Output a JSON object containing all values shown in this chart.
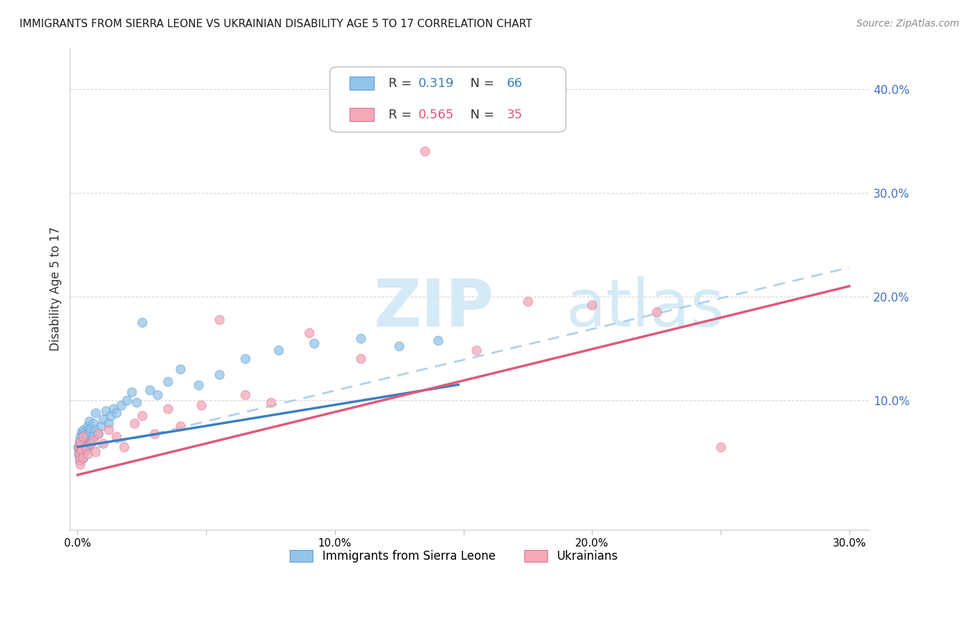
{
  "title": "IMMIGRANTS FROM SIERRA LEONE VS UKRAINIAN DISABILITY AGE 5 TO 17 CORRELATION CHART",
  "source": "Source: ZipAtlas.com",
  "ylabel": "Disability Age 5 to 17",
  "xlim": [
    -0.003,
    0.308
  ],
  "ylim": [
    -0.025,
    0.44
  ],
  "yticks_right": [
    0.1,
    0.2,
    0.3,
    0.4
  ],
  "xtick_vals": [
    0.0,
    0.05,
    0.1,
    0.15,
    0.2,
    0.25,
    0.3
  ],
  "blue_scatter_color": "#94c4e8",
  "blue_edge_color": "#5a9fd4",
  "pink_scatter_color": "#f4a8b8",
  "pink_edge_color": "#e07090",
  "blue_line_color": "#3a7fc1",
  "pink_line_color": "#e05878",
  "dash_line_color": "#a8cce8",
  "watermark_color": "#d0e8f5",
  "title_color": "#1a1a1a",
  "source_color": "#888888",
  "ylabel_color": "#333333",
  "right_tick_color": "#4472c4",
  "grid_color": "#d8d8d8",
  "legend_R1_color": "#333333",
  "legend_V1_color": "#3a7fc1",
  "legend_R2_color": "#333333",
  "legend_V2_color": "#e05878",
  "sl_x": [
    0.0002,
    0.0003,
    0.0005,
    0.0007,
    0.0008,
    0.001,
    0.001,
    0.001,
    0.001,
    0.0012,
    0.0013,
    0.0014,
    0.0015,
    0.0015,
    0.0016,
    0.0018,
    0.002,
    0.002,
    0.002,
    0.002,
    0.0022,
    0.0023,
    0.0025,
    0.0027,
    0.003,
    0.003,
    0.003,
    0.0032,
    0.0035,
    0.004,
    0.004,
    0.004,
    0.0042,
    0.0045,
    0.005,
    0.005,
    0.005,
    0.006,
    0.006,
    0.007,
    0.007,
    0.008,
    0.009,
    0.01,
    0.011,
    0.012,
    0.013,
    0.014,
    0.015,
    0.017,
    0.019,
    0.021,
    0.023,
    0.025,
    0.028,
    0.031,
    0.035,
    0.04,
    0.047,
    0.055,
    0.065,
    0.078,
    0.092,
    0.11,
    0.125,
    0.14
  ],
  "sl_y": [
    0.055,
    0.048,
    0.052,
    0.046,
    0.06,
    0.05,
    0.058,
    0.065,
    0.042,
    0.053,
    0.061,
    0.047,
    0.055,
    0.07,
    0.058,
    0.049,
    0.054,
    0.062,
    0.068,
    0.044,
    0.056,
    0.072,
    0.059,
    0.065,
    0.051,
    0.063,
    0.07,
    0.058,
    0.067,
    0.06,
    0.075,
    0.055,
    0.068,
    0.08,
    0.062,
    0.073,
    0.058,
    0.078,
    0.065,
    0.072,
    0.088,
    0.068,
    0.075,
    0.082,
    0.09,
    0.078,
    0.085,
    0.092,
    0.088,
    0.095,
    0.1,
    0.108,
    0.098,
    0.175,
    0.11,
    0.105,
    0.118,
    0.13,
    0.115,
    0.125,
    0.14,
    0.148,
    0.155,
    0.16,
    0.152,
    0.158
  ],
  "uk_x": [
    0.0003,
    0.0005,
    0.0008,
    0.001,
    0.001,
    0.0015,
    0.002,
    0.002,
    0.003,
    0.004,
    0.005,
    0.006,
    0.007,
    0.008,
    0.01,
    0.012,
    0.015,
    0.018,
    0.022,
    0.025,
    0.03,
    0.035,
    0.04,
    0.048,
    0.055,
    0.065,
    0.075,
    0.09,
    0.11,
    0.135,
    0.155,
    0.175,
    0.2,
    0.225,
    0.25
  ],
  "uk_y": [
    0.048,
    0.055,
    0.042,
    0.06,
    0.038,
    0.052,
    0.045,
    0.065,
    0.055,
    0.048,
    0.058,
    0.062,
    0.05,
    0.068,
    0.058,
    0.072,
    0.065,
    0.055,
    0.078,
    0.085,
    0.068,
    0.092,
    0.075,
    0.095,
    0.178,
    0.105,
    0.098,
    0.165,
    0.14,
    0.34,
    0.148,
    0.195,
    0.192,
    0.185,
    0.055
  ],
  "sl_trend_x0": 0.0,
  "sl_trend_x1": 0.148,
  "sl_trend_y0": 0.055,
  "sl_trend_y1": 0.115,
  "uk_trend_x0": 0.0,
  "uk_trend_x1": 0.3,
  "uk_trend_y0": 0.028,
  "uk_trend_y1": 0.21,
  "dash_trend_x0": 0.0,
  "dash_trend_x1": 0.3,
  "dash_trend_y0": 0.05,
  "dash_trend_y1": 0.228
}
